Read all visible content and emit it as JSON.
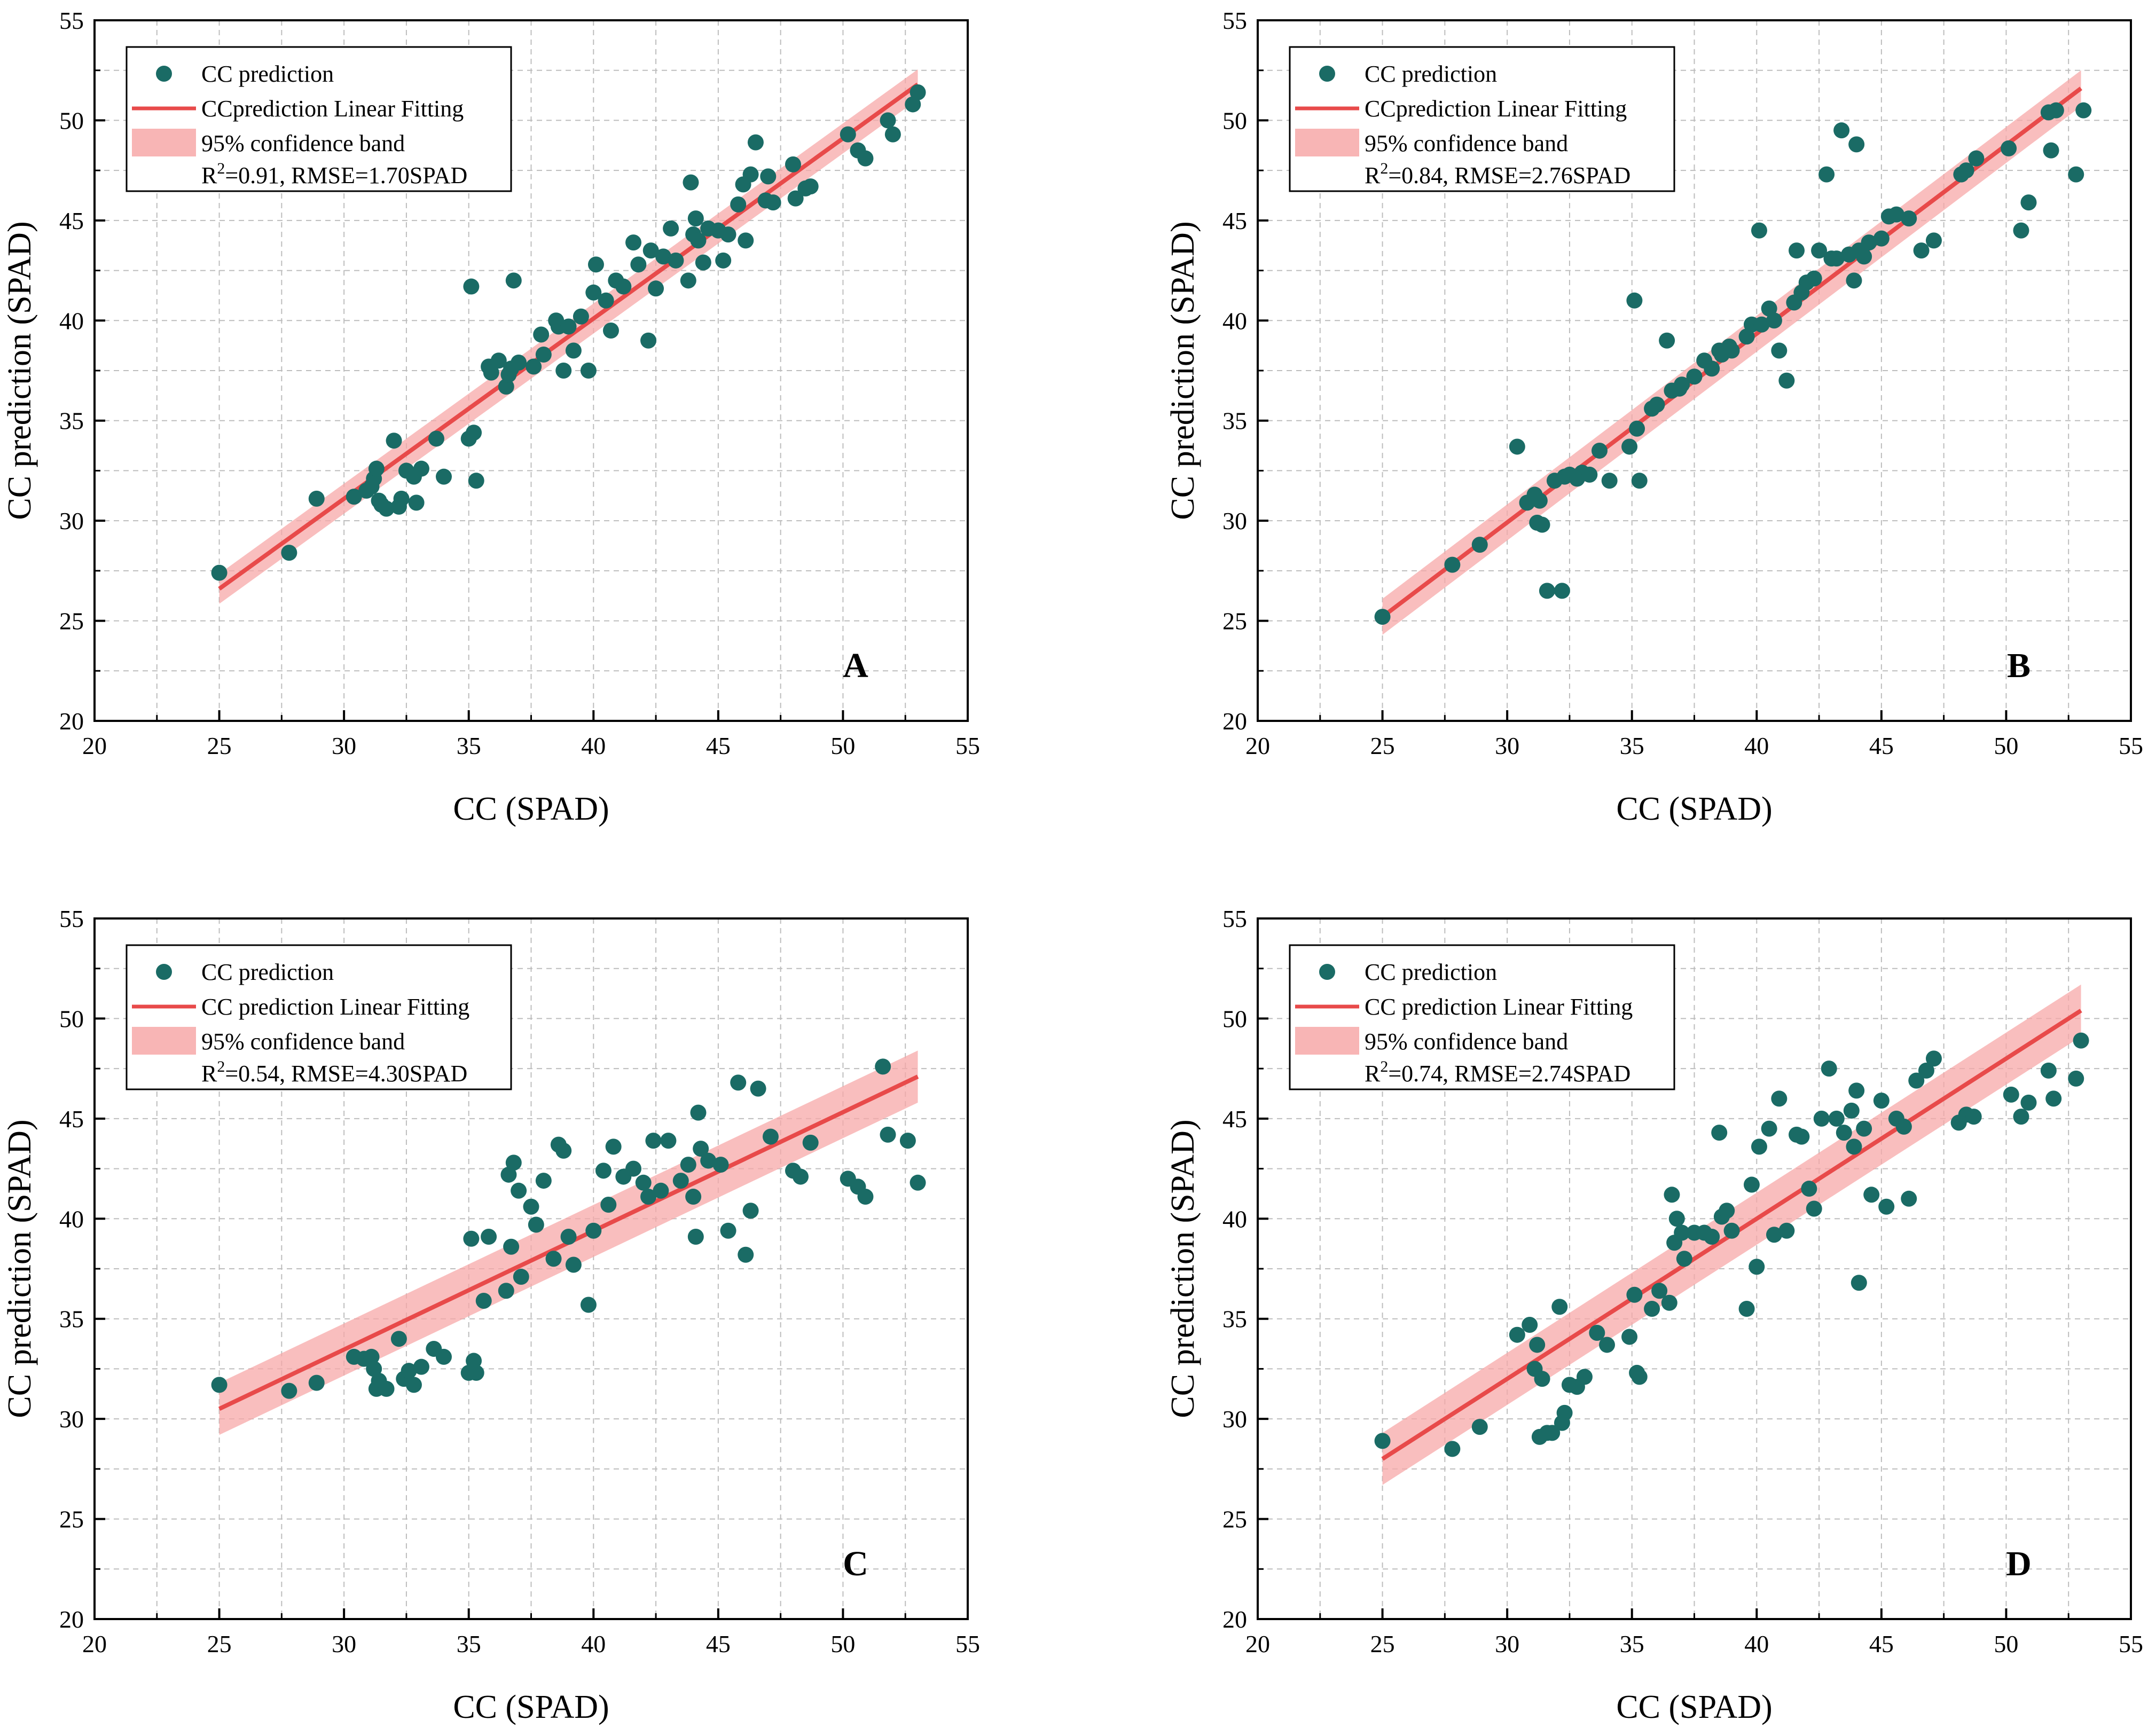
{
  "colors": {
    "point": "#1a6b65",
    "fit_line": "#e84a4a",
    "band": "#f7a8a8",
    "grid": "#bdbdbd"
  },
  "chart_data": [
    {
      "panel": "A",
      "type": "scatter",
      "xlabel": "CC (SPAD)",
      "ylabel": "CC prediction (SPAD)",
      "xlim": [
        20,
        55
      ],
      "ylim": [
        20,
        55
      ],
      "xticks": [
        20,
        25,
        30,
        35,
        40,
        45,
        50,
        55
      ],
      "yticks": [
        20,
        25,
        30,
        35,
        40,
        45,
        50,
        55
      ],
      "grid": true,
      "legend_position": "top-left",
      "legend": {
        "points": "CC prediction",
        "line": "CCprediction Linear Fitting",
        "band": "95% confidence band",
        "stat_pre": "R",
        "stat_sup": "2",
        "stat_post": "=0.91, RMSE=1.70SPAD"
      },
      "fit": {
        "x": [
          25,
          53
        ],
        "y": [
          26.6,
          51.8
        ],
        "band_halfwidth": [
          0.75,
          0.75
        ]
      },
      "x": [
        25.0,
        27.8,
        28.9,
        30.4,
        30.9,
        31.1,
        31.2,
        31.3,
        31.4,
        31.5,
        31.7,
        32.0,
        32.2,
        32.3,
        32.5,
        32.8,
        32.9,
        33.1,
        33.7,
        34.0,
        35.0,
        35.1,
        35.2,
        35.3,
        35.8,
        35.9,
        36.2,
        36.5,
        36.6,
        36.7,
        36.8,
        37.0,
        37.6,
        37.9,
        38.0,
        38.5,
        38.6,
        38.8,
        39.0,
        39.2,
        39.5,
        39.8,
        40.0,
        40.1,
        40.5,
        40.7,
        40.9,
        41.2,
        41.6,
        41.8,
        42.2,
        42.3,
        42.5,
        42.8,
        43.1,
        43.3,
        43.8,
        43.9,
        44.0,
        44.1,
        44.2,
        44.4,
        44.6,
        45.0,
        45.2,
        45.4,
        45.8,
        46.0,
        46.1,
        46.3,
        46.5,
        46.9,
        47.0,
        47.2,
        48.0,
        48.1,
        48.5,
        48.7,
        50.2,
        50.6,
        50.9,
        51.8,
        52.0,
        52.8,
        53.0
      ],
      "y": [
        27.4,
        28.4,
        31.1,
        31.2,
        31.5,
        31.7,
        32.1,
        32.6,
        31.0,
        30.8,
        30.6,
        34.0,
        30.7,
        31.1,
        32.5,
        32.2,
        30.9,
        32.6,
        34.1,
        32.2,
        34.1,
        41.7,
        34.4,
        32.0,
        37.7,
        37.4,
        38.0,
        36.7,
        37.3,
        37.6,
        42.0,
        37.9,
        37.7,
        39.3,
        38.3,
        40.0,
        39.7,
        37.5,
        39.7,
        38.5,
        40.2,
        37.5,
        41.4,
        42.8,
        41.0,
        39.5,
        42.0,
        41.7,
        43.9,
        42.8,
        39.0,
        43.5,
        41.6,
        43.2,
        44.6,
        43.0,
        42.0,
        46.9,
        44.3,
        45.1,
        44.0,
        42.9,
        44.6,
        44.5,
        43.0,
        44.3,
        45.8,
        46.8,
        44.0,
        47.3,
        48.9,
        46.0,
        47.2,
        45.9,
        47.8,
        46.1,
        46.6,
        46.7,
        49.3,
        48.5,
        48.1,
        50.0,
        49.3,
        50.8,
        51.4
      ]
    },
    {
      "panel": "B",
      "type": "scatter",
      "xlabel": "CC (SPAD)",
      "ylabel": "CC prediction (SPAD)",
      "xlim": [
        20,
        55
      ],
      "ylim": [
        20,
        55
      ],
      "xticks": [
        20,
        25,
        30,
        35,
        40,
        45,
        50,
        55
      ],
      "yticks": [
        20,
        25,
        30,
        35,
        40,
        45,
        50,
        55
      ],
      "grid": true,
      "legend_position": "top-left",
      "legend": {
        "points": "CC prediction",
        "line": "CCprediction Linear Fitting",
        "band": "95% confidence band",
        "stat_pre": "R",
        "stat_sup": "2",
        "stat_post": "=0.84, RMSE=2.76SPAD"
      },
      "fit": {
        "x": [
          25,
          53
        ],
        "y": [
          25.2,
          51.6
        ],
        "band_halfwidth": [
          0.9,
          0.9
        ]
      },
      "x": [
        25.0,
        27.8,
        28.9,
        30.4,
        30.8,
        31.1,
        31.2,
        31.3,
        31.4,
        31.6,
        31.9,
        32.2,
        32.3,
        32.5,
        32.8,
        33.0,
        33.3,
        33.7,
        34.1,
        34.9,
        35.1,
        35.2,
        35.3,
        35.8,
        36.0,
        36.4,
        36.6,
        36.9,
        37.0,
        37.5,
        37.9,
        38.2,
        38.5,
        38.6,
        38.9,
        39.0,
        39.6,
        39.8,
        40.1,
        40.2,
        40.5,
        40.7,
        40.9,
        41.2,
        41.5,
        41.6,
        41.8,
        42.0,
        42.3,
        42.5,
        42.8,
        43.0,
        43.2,
        43.4,
        43.7,
        43.9,
        44.0,
        44.1,
        44.3,
        44.5,
        45.0,
        45.3,
        45.6,
        46.1,
        46.6,
        47.1,
        48.2,
        48.4,
        48.8,
        50.1,
        50.6,
        50.9,
        51.7,
        51.8,
        52.0,
        52.8,
        53.1
      ],
      "y": [
        25.2,
        27.8,
        28.8,
        33.7,
        30.9,
        31.3,
        29.9,
        31.0,
        29.8,
        26.5,
        32.0,
        26.5,
        32.2,
        32.3,
        32.1,
        32.4,
        32.3,
        33.5,
        32.0,
        33.7,
        41.0,
        34.6,
        32.0,
        35.6,
        35.8,
        39.0,
        36.5,
        36.6,
        36.8,
        37.2,
        38.0,
        37.6,
        38.5,
        38.3,
        38.7,
        38.5,
        39.2,
        39.8,
        44.5,
        39.8,
        40.6,
        40.0,
        38.5,
        37.0,
        40.9,
        43.5,
        41.4,
        41.9,
        42.1,
        43.5,
        47.3,
        43.1,
        43.1,
        49.5,
        43.3,
        42.0,
        48.8,
        43.5,
        43.2,
        43.9,
        44.1,
        45.2,
        45.3,
        45.1,
        43.5,
        44.0,
        47.3,
        47.5,
        48.1,
        48.6,
        44.5,
        45.9,
        50.4,
        48.5,
        50.5,
        47.3,
        50.5
      ]
    },
    {
      "panel": "C",
      "type": "scatter",
      "xlabel": "CC (SPAD)",
      "ylabel": "CC prediction (SPAD)",
      "xlim": [
        20,
        55
      ],
      "ylim": [
        20,
        55
      ],
      "xticks": [
        20,
        25,
        30,
        35,
        40,
        45,
        50,
        55
      ],
      "yticks": [
        20,
        25,
        30,
        35,
        40,
        45,
        50,
        55
      ],
      "grid": true,
      "legend_position": "top-left",
      "legend": {
        "points": "CC prediction",
        "line": "CC prediction Linear Fitting",
        "band": "95% confidence band",
        "stat_pre": "R",
        "stat_sup": "2",
        "stat_post": "=0.54, RMSE=4.30SPAD"
      },
      "fit": {
        "x": [
          25,
          53
        ],
        "y": [
          30.5,
          47.1
        ],
        "band_halfwidth": [
          1.3,
          1.3
        ]
      },
      "x": [
        25.0,
        27.8,
        28.9,
        30.4,
        30.8,
        31.1,
        31.2,
        31.3,
        31.4,
        31.7,
        32.2,
        32.4,
        32.6,
        32.8,
        33.1,
        33.6,
        34.0,
        35.0,
        35.1,
        35.2,
        35.3,
        35.6,
        35.8,
        36.5,
        36.6,
        36.7,
        36.8,
        37.0,
        37.1,
        37.5,
        37.7,
        38.0,
        38.4,
        38.6,
        38.8,
        39.0,
        39.2,
        39.8,
        40.0,
        40.4,
        40.6,
        40.8,
        41.2,
        41.6,
        42.0,
        42.2,
        42.4,
        42.7,
        43.0,
        43.5,
        43.8,
        44.0,
        44.1,
        44.2,
        44.3,
        44.6,
        45.1,
        45.4,
        45.8,
        46.1,
        46.3,
        46.6,
        47.1,
        48.0,
        48.3,
        48.7,
        50.2,
        50.6,
        50.9,
        51.6,
        51.8,
        52.6,
        53.0
      ],
      "y": [
        31.7,
        31.4,
        31.8,
        33.1,
        33.0,
        33.1,
        32.5,
        31.5,
        31.9,
        31.5,
        34.0,
        32.0,
        32.4,
        31.7,
        32.6,
        33.5,
        33.1,
        32.3,
        39.0,
        32.9,
        32.3,
        35.9,
        39.1,
        36.4,
        42.2,
        38.6,
        42.8,
        41.4,
        37.1,
        40.6,
        39.7,
        41.9,
        38.0,
        43.7,
        43.4,
        39.1,
        37.7,
        35.7,
        39.4,
        42.4,
        40.7,
        43.6,
        42.1,
        42.5,
        41.8,
        41.1,
        43.9,
        41.4,
        43.9,
        41.9,
        42.7,
        41.1,
        39.1,
        45.3,
        43.5,
        42.9,
        42.7,
        39.4,
        46.8,
        38.2,
        40.4,
        46.5,
        44.1,
        42.4,
        42.1,
        43.8,
        42.0,
        41.6,
        41.1,
        47.6,
        44.2,
        43.9,
        41.8
      ]
    },
    {
      "panel": "D",
      "type": "scatter",
      "xlabel": "CC (SPAD)",
      "ylabel": "CC prediction (SPAD)",
      "xlim": [
        20,
        55
      ],
      "ylim": [
        20,
        55
      ],
      "xticks": [
        20,
        25,
        30,
        35,
        40,
        45,
        50,
        55
      ],
      "yticks": [
        20,
        25,
        30,
        35,
        40,
        45,
        50,
        55
      ],
      "grid": true,
      "legend_position": "top-left",
      "legend": {
        "points": "CC prediction",
        "line": "CC prediction Linear Fitting",
        "band": "95% confidence band",
        "stat_pre": "R",
        "stat_sup": "2",
        "stat_post": "=0.74, RMSE=2.74SPAD"
      },
      "fit": {
        "x": [
          25,
          53
        ],
        "y": [
          28.0,
          50.4
        ],
        "band_halfwidth": [
          1.3,
          1.3
        ]
      },
      "x": [
        25.0,
        27.8,
        28.9,
        30.4,
        30.9,
        31.1,
        31.2,
        31.3,
        31.4,
        31.6,
        31.8,
        32.1,
        32.2,
        32.3,
        32.5,
        32.8,
        33.1,
        33.6,
        34.0,
        34.9,
        35.1,
        35.2,
        35.3,
        35.8,
        36.1,
        36.5,
        36.6,
        36.7,
        36.8,
        37.0,
        37.1,
        37.5,
        37.9,
        38.2,
        38.5,
        38.6,
        38.8,
        39.0,
        39.6,
        39.8,
        40.0,
        40.1,
        40.5,
        40.7,
        40.9,
        41.2,
        41.6,
        41.8,
        42.1,
        42.3,
        42.6,
        42.9,
        43.2,
        43.5,
        43.8,
        43.9,
        44.0,
        44.1,
        44.3,
        44.6,
        45.0,
        45.2,
        45.6,
        45.9,
        46.1,
        46.4,
        46.8,
        47.1,
        48.1,
        48.4,
        48.7,
        50.2,
        50.6,
        50.9,
        51.7,
        51.9,
        52.8,
        53.0
      ],
      "y": [
        28.9,
        28.5,
        29.6,
        34.2,
        34.7,
        32.5,
        33.7,
        29.1,
        32.0,
        29.3,
        29.3,
        35.6,
        29.8,
        30.3,
        31.7,
        31.6,
        32.1,
        34.3,
        33.7,
        34.1,
        36.2,
        32.3,
        32.1,
        35.5,
        36.4,
        35.8,
        41.2,
        38.8,
        40.0,
        39.3,
        38.0,
        39.3,
        39.3,
        39.1,
        44.3,
        40.1,
        40.4,
        39.4,
        35.5,
        41.7,
        37.6,
        43.6,
        44.5,
        39.2,
        46.0,
        39.4,
        44.2,
        44.1,
        41.5,
        40.5,
        45.0,
        47.5,
        45.0,
        44.3,
        45.4,
        43.6,
        46.4,
        36.8,
        44.5,
        41.2,
        45.9,
        40.6,
        45.0,
        44.6,
        41.0,
        46.9,
        47.4,
        48.0,
        44.8,
        45.2,
        45.1,
        46.2,
        45.1,
        45.8,
        47.4,
        46.0,
        47.0,
        48.9
      ]
    }
  ]
}
